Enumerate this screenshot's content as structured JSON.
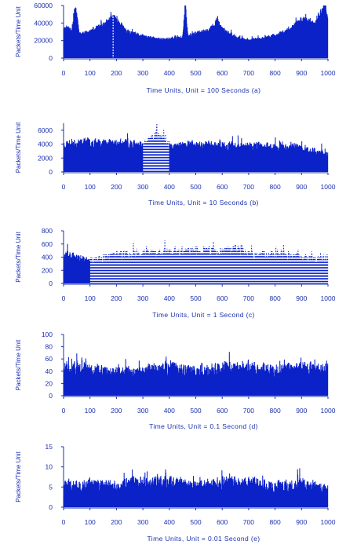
{
  "chart_data": [
    {
      "type": "bar",
      "id": "a",
      "ylabel": "Packets/Time Unit",
      "xlabel": "Time Units, Unit = 100 Seconds  (a)",
      "xlim": [
        0,
        1000
      ],
      "ylim": [
        0,
        60000
      ],
      "xticks": [
        0,
        100,
        200,
        300,
        400,
        500,
        600,
        700,
        800,
        900,
        1000
      ],
      "yticks": [
        0,
        20000,
        40000,
        60000
      ],
      "ytick_labels": [
        "0",
        "20000",
        "40000",
        "60000"
      ],
      "series_profile": [
        [
          0,
          35000
        ],
        [
          30,
          33000
        ],
        [
          45,
          60000
        ],
        [
          60,
          28000
        ],
        [
          100,
          30000
        ],
        [
          150,
          38000
        ],
        [
          185,
          47000
        ],
        [
          200,
          44000
        ],
        [
          240,
          30000
        ],
        [
          300,
          25000
        ],
        [
          350,
          22000
        ],
        [
          400,
          22000
        ],
        [
          450,
          24000
        ],
        [
          460,
          60000
        ],
        [
          470,
          26000
        ],
        [
          550,
          32000
        ],
        [
          580,
          42000
        ],
        [
          600,
          33000
        ],
        [
          650,
          24000
        ],
        [
          700,
          21000
        ],
        [
          750,
          22000
        ],
        [
          800,
          26000
        ],
        [
          850,
          32000
        ],
        [
          900,
          45000
        ],
        [
          950,
          38000
        ],
        [
          990,
          62000
        ],
        [
          1000,
          40000
        ]
      ],
      "noise": 0.18,
      "seed": 11,
      "highlight_ranges": [
        [
          185,
          190
        ]
      ]
    },
    {
      "type": "bar",
      "id": "b",
      "ylabel": "Packets/Time Unit",
      "xlabel": "Time Units, Unit = 10 Seconds  (b)",
      "xlim": [
        0,
        1000
      ],
      "ylim": [
        0,
        7000
      ],
      "xticks": [
        0,
        100,
        200,
        300,
        400,
        500,
        600,
        700,
        800,
        900,
        1000
      ],
      "yticks": [
        0,
        2000,
        4000,
        6000
      ],
      "ytick_labels": [
        "0",
        "2000",
        "4000",
        "6000"
      ],
      "series_profile": [
        [
          0,
          4000
        ],
        [
          100,
          4300
        ],
        [
          200,
          4100
        ],
        [
          300,
          3800
        ],
        [
          350,
          5200
        ],
        [
          400,
          3600
        ],
        [
          500,
          3900
        ],
        [
          600,
          3800
        ],
        [
          700,
          3700
        ],
        [
          800,
          3600
        ],
        [
          900,
          3500
        ],
        [
          1000,
          2500
        ]
      ],
      "noise": 0.35,
      "seed": 23,
      "highlight_ranges": [
        [
          300,
          400
        ]
      ]
    },
    {
      "type": "bar",
      "id": "c",
      "ylabel": "Packets/Time Unit",
      "xlabel": "Time Units, Unit = 1 Second  (c)",
      "xlim": [
        0,
        1000
      ],
      "ylim": [
        0,
        800
      ],
      "xticks": [
        0,
        100,
        200,
        300,
        400,
        500,
        600,
        700,
        800,
        900,
        1000
      ],
      "yticks": [
        0,
        200,
        400,
        600,
        800
      ],
      "ytick_labels": [
        "0",
        "200",
        "400",
        "600",
        "800"
      ],
      "series_profile": [
        [
          0,
          420
        ],
        [
          50,
          380
        ],
        [
          100,
          330
        ],
        [
          200,
          420
        ],
        [
          300,
          430
        ],
        [
          400,
          460
        ],
        [
          500,
          470
        ],
        [
          600,
          480
        ],
        [
          650,
          500
        ],
        [
          700,
          450
        ],
        [
          800,
          420
        ],
        [
          900,
          380
        ],
        [
          1000,
          360
        ]
      ],
      "noise": 0.4,
      "seed": 37,
      "highlight_ranges": [
        [
          100,
          1000
        ]
      ]
    },
    {
      "type": "bar",
      "id": "d",
      "ylabel": "Packets/Time Unit",
      "xlabel": "Time Units, Unit = 0.1 Second  (d)",
      "xlim": [
        0,
        1000
      ],
      "ylim": [
        0,
        100
      ],
      "xticks": [
        0,
        100,
        200,
        300,
        400,
        500,
        600,
        700,
        800,
        900,
        1000
      ],
      "yticks": [
        0,
        20,
        40,
        60,
        80,
        100
      ],
      "ytick_labels": [
        "0",
        "20",
        "40",
        "60",
        "80",
        "100"
      ],
      "series_profile": [
        [
          0,
          45
        ],
        [
          100,
          42
        ],
        [
          200,
          38
        ],
        [
          300,
          40
        ],
        [
          400,
          44
        ],
        [
          500,
          40
        ],
        [
          600,
          44
        ],
        [
          700,
          46
        ],
        [
          800,
          40
        ],
        [
          900,
          45
        ],
        [
          1000,
          42
        ]
      ],
      "noise": 0.55,
      "seed": 51,
      "highlight_ranges": []
    },
    {
      "type": "bar",
      "id": "e",
      "ylabel": "Packets/Time Unit",
      "xlabel": "Time Units, Unit = 0.01 Second  (e)",
      "xlim": [
        0,
        1000
      ],
      "ylim": [
        0,
        15
      ],
      "xticks": [
        0,
        100,
        200,
        300,
        400,
        500,
        600,
        700,
        800,
        900,
        1000
      ],
      "yticks": [
        0,
        5,
        10,
        15
      ],
      "ytick_labels": [
        "0",
        "5",
        "10",
        "15"
      ],
      "series_profile": [
        [
          0,
          5
        ],
        [
          100,
          5.5
        ],
        [
          200,
          5
        ],
        [
          300,
          6.5
        ],
        [
          400,
          6
        ],
        [
          500,
          5
        ],
        [
          600,
          5.8
        ],
        [
          700,
          6
        ],
        [
          800,
          5
        ],
        [
          900,
          5.5
        ],
        [
          1000,
          4.5
        ]
      ],
      "noise": 0.65,
      "seed": 73,
      "highlight_ranges": []
    }
  ],
  "colors": {
    "bar": "#0b22c8",
    "highlight": "#8fb0ff",
    "text": "#1a2fb0"
  }
}
